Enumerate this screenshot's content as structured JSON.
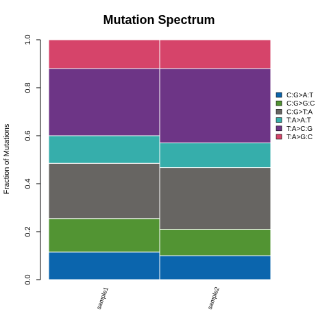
{
  "chart_data": {
    "type": "bar",
    "stacked": true,
    "title": "Mutation Spectrum",
    "ylabel": "Fraction of Mutations",
    "xlabel": "",
    "ylim": [
      0,
      1
    ],
    "yticks": [
      "0.0",
      "0.2",
      "0.4",
      "0.6",
      "0.8",
      "1.0"
    ],
    "categories": [
      "sample1",
      "sample2"
    ],
    "series": [
      {
        "name": "C:G>A:T",
        "color": "#0b65ad",
        "values": [
          0.115,
          0.1
        ]
      },
      {
        "name": "C:G>G:C",
        "color": "#529433",
        "values": [
          0.14,
          0.11
        ]
      },
      {
        "name": "C:G>T:A",
        "color": "#676562",
        "values": [
          0.23,
          0.257
        ]
      },
      {
        "name": "T:A>A:T",
        "color": "#36aeab",
        "values": [
          0.115,
          0.103
        ]
      },
      {
        "name": "T:A>C:G",
        "color": "#6d3586",
        "values": [
          0.28,
          0.31
        ]
      },
      {
        "name": "T:A>G:C",
        "color": "#d6446a",
        "values": [
          0.12,
          0.12
        ]
      }
    ],
    "legend_position": "right",
    "grid": false
  }
}
